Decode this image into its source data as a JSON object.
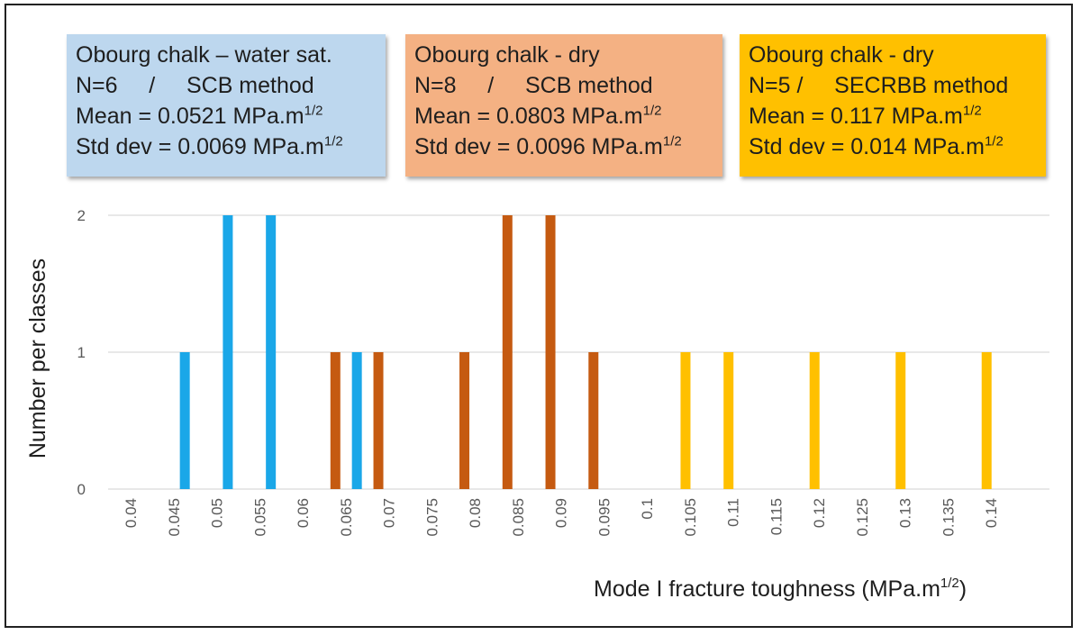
{
  "boxes": [
    {
      "id": "water-sat",
      "line1": "Obourg chalk – water sat.",
      "line2": "N=6     /     SCB method",
      "line3_prefix": "Mean = 0.0521 MPa.m",
      "line3_sup": "1/2",
      "line4_prefix": "Std dev = 0.0069 MPa.m",
      "line4_sup": "1/2",
      "color": "#bdd7ee"
    },
    {
      "id": "dry-scb",
      "line1": "Obourg chalk - dry",
      "line2": "N=8     /     SCB method",
      "line3_prefix": "Mean = 0.0803 MPa.m",
      "line3_sup": "1/2",
      "line4_prefix": "Std dev = 0.0096 MPa.m",
      "line4_sup": "1/2",
      "color": "#f4b183"
    },
    {
      "id": "dry-secrbb",
      "line1": "Obourg chalk - dry",
      "line2": "N=5 /     SECRBB method",
      "line3_prefix": "Mean = 0.117 MPa.m",
      "line3_sup": "1/2",
      "line4_prefix": "Std dev = 0.014 MPa.m",
      "line4_sup": "1/2",
      "color": "#ffc000"
    }
  ],
  "chart_data": {
    "type": "bar",
    "ylabel": "Number per classes",
    "xlabel_prefix": "Mode I fracture toughness (MPa.m",
    "xlabel_sup": "1/2",
    "xlabel_suffix": ")",
    "categories": [
      "0.04",
      "0.045",
      "0.05",
      "0.055",
      "0.06",
      "0.065",
      "0.07",
      "0.075",
      "0.08",
      "0.085",
      "0.09",
      "0.095",
      "0.1",
      "0.105",
      "0.11",
      "0.115",
      "0.12",
      "0.125",
      "0.13",
      "0.135",
      "0.14"
    ],
    "ylim": [
      0,
      2
    ],
    "yticks": [
      "0",
      "1",
      "2"
    ],
    "grid": true,
    "series": [
      {
        "id": "water-sat",
        "color": "#1aa7e8",
        "bars": [
          {
            "x": 0.0463,
            "value": 1
          },
          {
            "x": 0.0513,
            "value": 2
          },
          {
            "x": 0.0563,
            "value": 2
          },
          {
            "x": 0.0663,
            "value": 1
          }
        ]
      },
      {
        "id": "dry-scb",
        "color": "#c55a11",
        "bars": [
          {
            "x": 0.0638,
            "value": 1
          },
          {
            "x": 0.0688,
            "value": 1
          },
          {
            "x": 0.0788,
            "value": 1
          },
          {
            "x": 0.0838,
            "value": 2
          },
          {
            "x": 0.0888,
            "value": 2
          },
          {
            "x": 0.0938,
            "value": 1
          }
        ]
      },
      {
        "id": "dry-secrbb",
        "color": "#ffc000",
        "bars": [
          {
            "x": 0.1045,
            "value": 1
          },
          {
            "x": 0.1095,
            "value": 1
          },
          {
            "x": 0.1195,
            "value": 1
          },
          {
            "x": 0.1295,
            "value": 1
          },
          {
            "x": 0.1395,
            "value": 1
          }
        ]
      }
    ]
  }
}
